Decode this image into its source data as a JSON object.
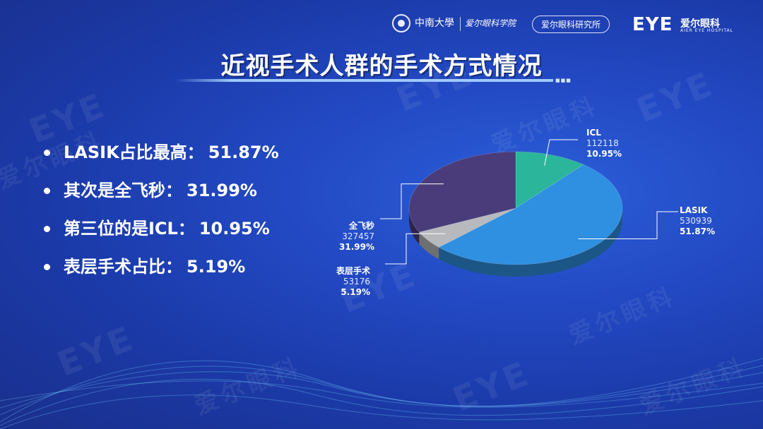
{
  "header": {
    "university": "中南大學",
    "school": "爱尔眼科学院",
    "institute": "爱尔眼科研究所",
    "eye_logo": "EYE",
    "aier_name": "爱尔眼科",
    "aier_sub": "AIER EYE HOSPITAL"
  },
  "title": "近视手术人群的手术方式情况",
  "bullets": [
    {
      "text": "LASIK占比最高：",
      "pct": "51.87%"
    },
    {
      "text": "其次是全飞秒：",
      "pct": "31.99%"
    },
    {
      "text": "第三位的是ICL：",
      "pct": "10.95%"
    },
    {
      "text": "表层手术占比：",
      "pct": "5.19%"
    }
  ],
  "chart_data": {
    "type": "pie",
    "title": "",
    "slices": [
      {
        "label": "ICL",
        "value": 112118,
        "percent": "10.95%",
        "color": "#2bb59a"
      },
      {
        "label": "LASIK",
        "value": 530939,
        "percent": "51.87%",
        "color": "#2f8fe0"
      },
      {
        "label": "表层手术",
        "value": 53176,
        "percent": "5.19%",
        "color": "#b7b9bd"
      },
      {
        "label": "全飞秒",
        "value": 327457,
        "percent": "31.99%",
        "color": "#4a3c7a"
      }
    ]
  },
  "colors": {
    "background": "#2248c2",
    "title_underline": "#add8ff"
  }
}
